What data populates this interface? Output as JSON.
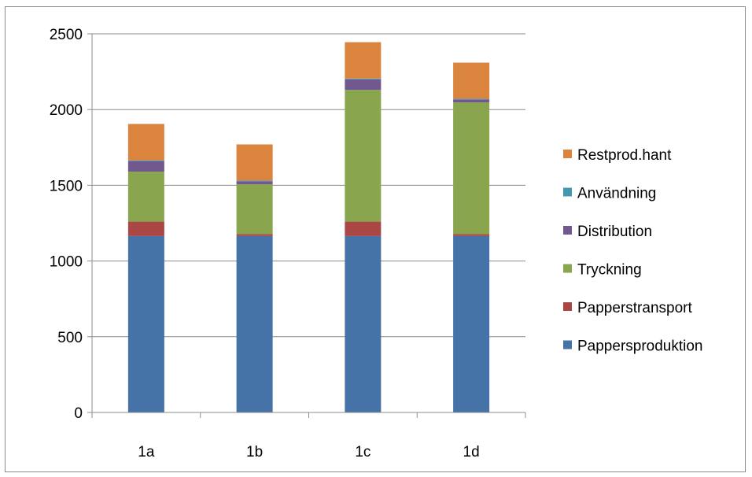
{
  "chart_data": {
    "type": "bar",
    "stacked": true,
    "categories": [
      "1a",
      "1b",
      "1c",
      "1d"
    ],
    "ylim": [
      0,
      2500
    ],
    "yticks": [
      0,
      500,
      1000,
      1500,
      2000,
      2500
    ],
    "grid": true,
    "legend": "right",
    "series": [
      {
        "name": "Pappersproduktion",
        "color": "#4572a7",
        "values": [
          1165,
          1165,
          1165,
          1165
        ]
      },
      {
        "name": "Papperstransport",
        "color": "#aa4643",
        "values": [
          95,
          12,
          95,
          12
        ]
      },
      {
        "name": "Tryckning",
        "color": "#89a54e",
        "values": [
          330,
          330,
          870,
          870
        ]
      },
      {
        "name": "Distribution",
        "color": "#71588f",
        "values": [
          70,
          20,
          70,
          20
        ]
      },
      {
        "name": "Användning",
        "color": "#4198af",
        "values": [
          5,
          5,
          5,
          5
        ]
      },
      {
        "name": "Restprod.hant",
        "color": "#db843d",
        "values": [
          240,
          238,
          240,
          238
        ]
      }
    ]
  }
}
